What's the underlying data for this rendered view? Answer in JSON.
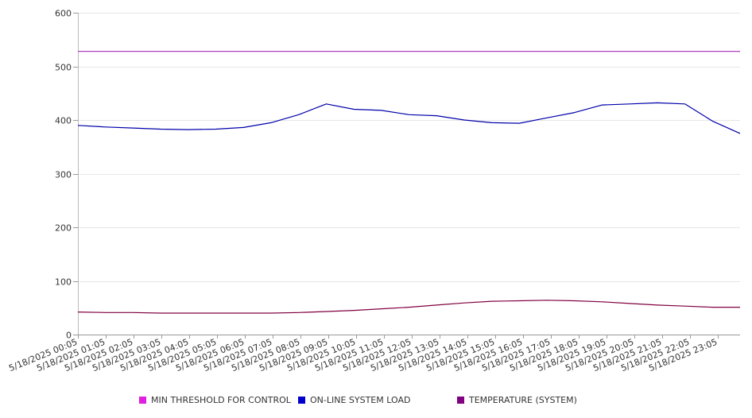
{
  "chart_data": {
    "type": "line",
    "title": "",
    "xlabel": "",
    "ylabel": "",
    "ylim": [
      0,
      600
    ],
    "y_ticks": [
      0,
      100,
      200,
      300,
      400,
      500,
      600
    ],
    "y_tick_labels": [
      "0",
      "100",
      "200",
      "300",
      "400",
      "500",
      "600"
    ],
    "x_tick_labels": [
      "5/18/2025 00:05",
      "5/18/2025 01:05",
      "5/18/2025 02:05",
      "5/18/2025 03:05",
      "5/18/2025 04:05",
      "5/18/2025 05:05",
      "5/18/2025 06:05",
      "5/18/2025 07:05",
      "5/18/2025 08:05",
      "5/18/2025 09:05",
      "5/18/2025 10:05",
      "5/18/2025 11:05",
      "5/18/2025 12:05",
      "5/18/2025 13:05",
      "5/18/2025 14:05",
      "5/18/2025 15:05",
      "5/18/2025 16:05",
      "5/18/2025 17:05",
      "5/18/2025 18:05",
      "5/18/2025 19:05",
      "5/18/2025 20:05",
      "5/18/2025 21:05",
      "5/18/2025 22:05",
      "5/18/2025 23:05"
    ],
    "grid": true,
    "legend_position": "bottom",
    "series": [
      {
        "name": "MIN THRESHOLD FOR CONTROL",
        "color": "#e020e0",
        "line_color": "#b040c0",
        "values": [
          528,
          528,
          528,
          528,
          528,
          528,
          528,
          528,
          528,
          528,
          528,
          528,
          528,
          528,
          528,
          528,
          528,
          528,
          528,
          528,
          528,
          528,
          528,
          528,
          528
        ]
      },
      {
        "name": "ON-LINE SYSTEM LOAD",
        "color": "#0000cc",
        "line_color": "#0000aa",
        "values": [
          390,
          387,
          385,
          383,
          382,
          383,
          386,
          395,
          410,
          430,
          420,
          418,
          410,
          408,
          400,
          395,
          394,
          404,
          414,
          428,
          430,
          432,
          430,
          398,
          375
        ]
      },
      {
        "name": "TEMPERATURE (SYSTEM)",
        "color": "#800080",
        "line_color": "#800040",
        "values": [
          42,
          41,
          41,
          40,
          40,
          40,
          40,
          40,
          41,
          43,
          45,
          48,
          51,
          55,
          59,
          62,
          63,
          64,
          63,
          61,
          58,
          55,
          53,
          51,
          51
        ]
      }
    ]
  }
}
